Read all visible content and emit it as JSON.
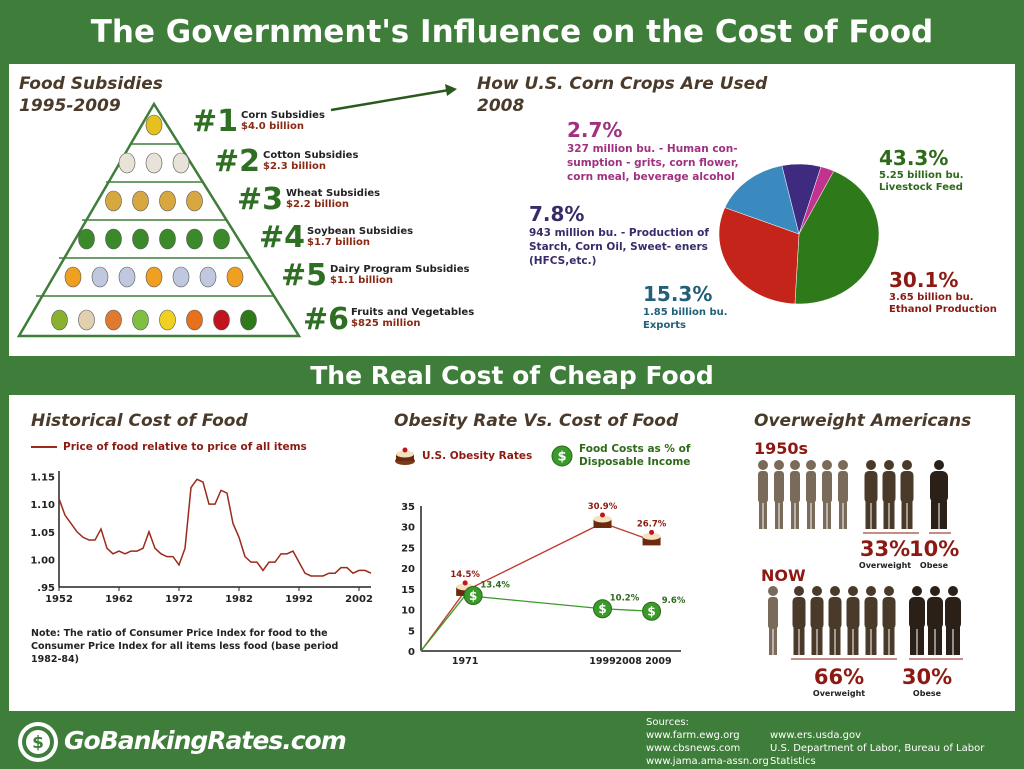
{
  "header": {
    "title": "The Government's Influence on the Cost of Food",
    "subtitle": "The Real Cost of Cheap Food"
  },
  "subsidies": {
    "title": "Food Subsidies",
    "years": "1995-2009",
    "items": [
      {
        "rank": "#1",
        "name": "Corn Subsidies",
        "amount": "$4.0 billion",
        "icons": [
          "corn-icon"
        ]
      },
      {
        "rank": "#2",
        "name": "Cotton Subsidies",
        "amount": "$2.3 billion",
        "icons": [
          "cotton-icon",
          "cotton-icon",
          "cotton-icon"
        ]
      },
      {
        "rank": "#3",
        "name": "Wheat Subsidies",
        "amount": "$2.2 billion",
        "icons": [
          "wheat-icon",
          "wheat-icon",
          "wheat-icon",
          "wheat-icon"
        ]
      },
      {
        "rank": "#4",
        "name": "Soybean Subsidies",
        "amount": "$1.7 billion",
        "icons": [
          "soybean-icon",
          "soybean-icon",
          "soybean-icon",
          "soybean-icon",
          "soybean-icon",
          "soybean-icon"
        ]
      },
      {
        "rank": "#5",
        "name": "Dairy Program Subsidies",
        "amount": "$1.1 billion",
        "icons": [
          "cheese-icon",
          "milk-icon",
          "milk-icon",
          "cheese-icon",
          "milk-icon",
          "milk-icon",
          "cheese-icon"
        ]
      },
      {
        "rank": "#6",
        "name": "Fruits and Vegetables",
        "amount": "$825 million",
        "icons": [
          "pear-icon",
          "mushroom-icon",
          "peach-icon",
          "pepper-icon",
          "banana-icon",
          "carrot-icon",
          "cherry-icon",
          "broccoli-icon"
        ]
      }
    ]
  },
  "corn": {
    "title": "How U.S. Corn Crops Are Used",
    "year": "2008",
    "slices": [
      {
        "pct": "43.3%",
        "value": 43.3,
        "desc": "5.25 billion bu. Livestock Feed",
        "color": "#2e7a1a",
        "text_color": "#2e6a1a"
      },
      {
        "pct": "30.1%",
        "value": 30.1,
        "desc": "3.65 billion bu. Ethanol Production",
        "color": "#c4241a",
        "text_color": "#8c1a12"
      },
      {
        "pct": "15.3%",
        "value": 15.3,
        "desc": "1.85  billion bu. Exports",
        "color": "#3a8ac0",
        "text_color": "#22607a"
      },
      {
        "pct": "7.8%",
        "value": 7.8,
        "desc": "943 million  bu. - Production of Starch, Corn Oil, Sweet- eners (HFCS,etc.)",
        "color": "#3e2a7e",
        "text_color": "#3a2a6a"
      },
      {
        "pct": "2.7%",
        "value": 2.7,
        "desc": "327 million  bu. - Human con- sumption - grits, corn flower, corn meal, beverage alcohol",
        "color": "#c0348e",
        "text_color": "#a03080"
      }
    ]
  },
  "historical": {
    "title": "Historical Cost of Food",
    "legend": "Price of food relative to price of all items",
    "note": "Note: The ratio of Consumer Price Index for food to the Consumer Price Index for all items less food (base period 1982-84)"
  },
  "obesity": {
    "title": "Obesity Rate Vs. Cost of Food",
    "legend_obesity": "U.S. Obesity Rates",
    "legend_cost": "Food Costs as % of Disposable Income"
  },
  "overweight": {
    "title": "Overweight Americans",
    "era1": "1950s",
    "era1_overweight": "33%",
    "era1_obese": "10%",
    "era2": "NOW",
    "era2_overweight": "66%",
    "era2_obese": "30%",
    "lbl_overweight": "Overweight",
    "lbl_obese": "Obese"
  },
  "footer": {
    "brand": "GoBankingRates.com",
    "sources_title": "Sources:",
    "sources_left": [
      "www.farm.ewg.org",
      "www.cbsnews.com",
      "www.jama.ama-assn.org"
    ],
    "sources_right": [
      "www.ers.usda.gov",
      "U.S. Department of Labor, Bureau of Labor Statistics"
    ]
  },
  "chart_data": [
    {
      "type": "pie",
      "title": "How U.S. Corn Crops Are Used",
      "categories": [
        "Livestock Feed",
        "Ethanol Production",
        "Exports",
        "Production of Starch, Corn Oil, Sweeteners (HFCS,etc.)",
        "Human consumption - grits, corn flower, corn meal, beverage alcohol"
      ],
      "values": [
        43.3,
        30.1,
        15.3,
        7.8,
        2.7
      ]
    },
    {
      "type": "line",
      "title": "Historical Cost of Food",
      "x": [
        1952,
        1953,
        1954,
        1955,
        1956,
        1957,
        1958,
        1959,
        1960,
        1961,
        1962,
        1963,
        1964,
        1965,
        1966,
        1967,
        1968,
        1969,
        1970,
        1971,
        1972,
        1973,
        1974,
        1975,
        1976,
        1977,
        1978,
        1979,
        1980,
        1981,
        1982,
        1983,
        1984,
        1985,
        1986,
        1987,
        1988,
        1989,
        1990,
        1991,
        1992,
        1993,
        1994,
        1995,
        1996,
        1997,
        1998,
        1999,
        2000,
        2001,
        2002,
        2003,
        2004
      ],
      "series": [
        {
          "name": "Price of food relative to price of all items",
          "values": [
            1.11,
            1.08,
            1.065,
            1.05,
            1.04,
            1.035,
            1.035,
            1.055,
            1.02,
            1.01,
            1.015,
            1.01,
            1.015,
            1.015,
            1.02,
            1.05,
            1.02,
            1.01,
            1.005,
            1.005,
            0.99,
            1.02,
            1.13,
            1.145,
            1.14,
            1.1,
            1.1,
            1.125,
            1.12,
            1.065,
            1.04,
            1.005,
            0.995,
            0.995,
            0.98,
            0.995,
            0.995,
            1.01,
            1.01,
            1.015,
            0.995,
            0.975,
            0.97,
            0.97,
            0.97,
            0.975,
            0.975,
            0.985,
            0.985,
            0.975,
            0.98,
            0.98,
            0.975
          ]
        }
      ],
      "xticks": [
        "1952",
        "1962",
        "1972",
        "1982",
        "1992",
        "2002"
      ],
      "yticks": [
        ".95",
        "1.00",
        "1.05",
        "1.10",
        "1.15"
      ],
      "xlim": [
        1952,
        2004
      ],
      "ylim": [
        0.95,
        1.16
      ]
    },
    {
      "type": "line",
      "title": "Obesity Rate Vs. Cost of Food",
      "categories": [
        "1971",
        "1999",
        "2008 2009"
      ],
      "x": [
        1971,
        1999,
        2009
      ],
      "series": [
        {
          "name": "U.S. Obesity Rates",
          "values": [
            14.5,
            30.9,
            26.7
          ],
          "labels": [
            "14.5%",
            "30.9%",
            "26.7%"
          ],
          "color": "#c0392b"
        },
        {
          "name": "Food Costs as % of Disposable Income",
          "values": [
            13.4,
            10.2,
            9.6
          ],
          "labels": [
            "13.4%",
            "10.2%",
            "9.6%"
          ],
          "color": "#3a9a2a"
        }
      ],
      "yticks": [
        "0",
        "5",
        "10",
        "15",
        "20",
        "25",
        "30",
        "35"
      ],
      "ylim": [
        0,
        35
      ]
    }
  ]
}
